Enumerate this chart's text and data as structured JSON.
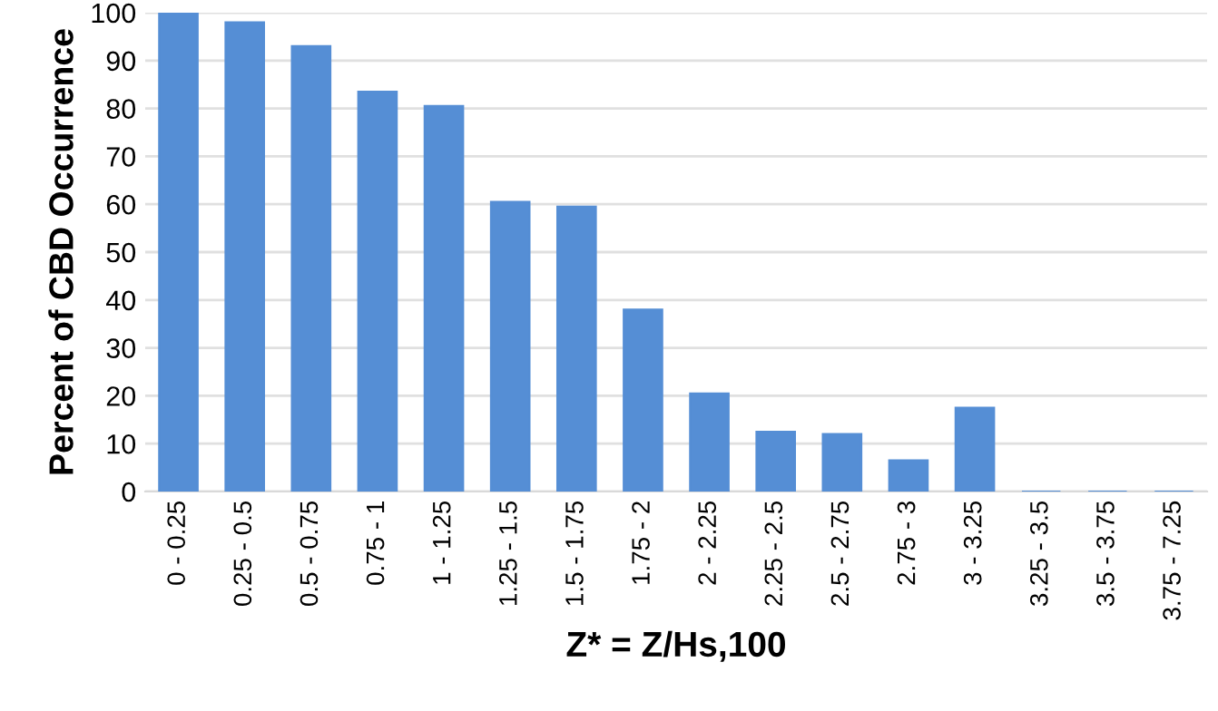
{
  "chart_data": {
    "type": "bar",
    "xlabel": "Z* = Z/Hs,100",
    "ylabel": "Percent of CBD Occurrence",
    "categories": [
      "0 - 0.25",
      "0.25 - 0.5",
      "0.5 - 0.75",
      "0.75 - 1",
      "1 - 1.25",
      "1.25 - 1.5",
      "1.5 - 1.75",
      "1.75 - 2",
      "2 - 2.25",
      "2.25 - 2.5",
      "2.5 - 2.75",
      "2.75 - 3",
      "3 - 3.25",
      "3.25 - 3.5",
      "3.5 - 3.75",
      "3.75 - 7.25"
    ],
    "values": [
      100,
      98,
      93,
      83.5,
      80.5,
      60.5,
      59.5,
      38,
      20.5,
      12.5,
      12,
      6.5,
      17.5,
      0,
      0,
      0
    ],
    "color": "#558ed5",
    "ylim": [
      0,
      100
    ],
    "yticks": [
      0,
      10,
      20,
      30,
      40,
      50,
      60,
      70,
      80,
      90,
      100
    ],
    "grid": "y",
    "legend": false
  }
}
